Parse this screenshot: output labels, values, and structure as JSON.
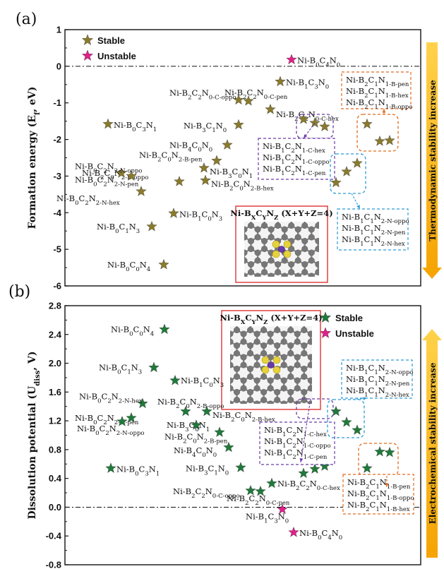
{
  "chart_data": [
    {
      "panel": "(a)",
      "type": "scatter",
      "ylabel_main": "Formation energy (E",
      "ylabel_sub": "f",
      "ylabel_tail": ", eV)",
      "ylim": [
        -6,
        1
      ],
      "yticks": [
        "1",
        "0",
        "-1",
        "-2",
        "-3",
        "-4",
        "-5",
        "-6"
      ],
      "side_label": "Thermodynamic stability increase",
      "arrow_direction": "down",
      "legend": [
        {
          "name": "Stable",
          "color": "#8a7a2c"
        },
        {
          "name": "Unstable",
          "color": "#e0208a"
        }
      ],
      "inset_title": "Ni-B",
      "inset_title_parts": [
        "Ni-B",
        "X",
        "C",
        "Y",
        "N",
        "Z",
        " (X+Y+Z=4)"
      ],
      "points": [
        {
          "label": [
            "Ni-B",
            "0",
            "C",
            "4",
            "N",
            "0"
          ],
          "y": 0.18,
          "status": "unstable"
        },
        {
          "label": [
            "Ni-B",
            "1",
            "C",
            "3",
            "N",
            "0"
          ],
          "y": -0.42,
          "status": "stable"
        },
        {
          "label": [
            "Ni-B",
            "2",
            "C",
            "2",
            "N",
            "0-C-pen"
          ],
          "y": -0.95,
          "status": "stable"
        },
        {
          "label": [
            "Ni-B",
            "2",
            "C",
            "2",
            "N",
            "0-C-oppo"
          ],
          "y": -0.92,
          "status": "stable"
        },
        {
          "label": [
            "Ni-B",
            "2",
            "C",
            "2",
            "N",
            "0-C-hex"
          ],
          "y": -1.18,
          "status": "stable"
        },
        {
          "label": [
            "Ni-B",
            "0",
            "C",
            "3",
            "N",
            "1"
          ],
          "y": -1.58,
          "status": "stable"
        },
        {
          "label": [
            "Ni-B",
            "3",
            "C",
            "1",
            "N",
            "0"
          ],
          "y": -1.6,
          "status": "stable"
        },
        {
          "label": [
            "Ni-B",
            "4",
            "C",
            "0",
            "N",
            "0"
          ],
          "y": -2.15,
          "status": "stable"
        },
        {
          "label": [
            "Ni-B",
            "2",
            "C",
            "0",
            "N",
            "2-B-pen"
          ],
          "y": -2.58,
          "status": "stable"
        },
        {
          "label": [
            "Ni-B",
            "3",
            "C",
            "0",
            "N",
            "1"
          ],
          "y": -2.78,
          "status": "stable"
        },
        {
          "label": [
            "Ni-B",
            "2",
            "C",
            "0",
            "N",
            "2-B-oppo"
          ],
          "y": -3.15,
          "status": "stable"
        },
        {
          "label": [
            "Ni-B",
            "2",
            "C",
            "0",
            "N",
            "2-B-hex"
          ],
          "y": -3.12,
          "status": "stable"
        },
        {
          "label": [
            "Ni-B",
            "0",
            "C",
            "2",
            "N",
            "2-N-oppo"
          ],
          "y": -2.92,
          "status": "stable"
        },
        {
          "label": [
            "Ni-B",
            "0",
            "C",
            "2",
            "N",
            "2-N-pen"
          ],
          "y": -3.0,
          "status": "stable"
        },
        {
          "label": [
            "Ni-B",
            "0",
            "C",
            "2",
            "N",
            "2-N-hex"
          ],
          "y": -3.42,
          "status": "stable"
        },
        {
          "label": [
            "Ni-B",
            "1",
            "C",
            "0",
            "N",
            "3"
          ],
          "y": -4.02,
          "status": "stable"
        },
        {
          "label": [
            "Ni-B",
            "0",
            "C",
            "1",
            "N",
            "3"
          ],
          "y": -4.38,
          "status": "stable"
        },
        {
          "label": [
            "Ni-B",
            "0",
            "C",
            "0",
            "N",
            "4"
          ],
          "y": -5.42,
          "status": "stable"
        }
      ],
      "groups": [
        {
          "color": "#6a3aa8",
          "lines": [
            [
              "Ni-B",
              "1",
              "C",
              "2",
              "N",
              "1-C-hex"
            ],
            [
              "Ni-B",
              "1",
              "C",
              "2",
              "N",
              "1-C-oppo"
            ],
            [
              "Ni-B",
              "1",
              "C",
              "2",
              "N",
              "1-C-pen"
            ]
          ],
          "y": [
            -1.45,
            -1.55,
            -1.65
          ]
        },
        {
          "color": "#e06a1e",
          "lines": [
            [
              "Ni-B",
              "2",
              "C",
              "1",
              "N",
              "1-B-pen"
            ],
            [
              "Ni-B",
              "2",
              "C",
              "1",
              "N",
              "1-B-hex"
            ],
            [
              "Ni-B",
              "2",
              "C",
              "1",
              "N",
              "1-B-oppo"
            ]
          ],
          "y": [
            -1.58,
            -2.05,
            -2.03
          ]
        },
        {
          "color": "#2a9bd6",
          "lines": [
            [
              "Ni-B",
              "1",
              "C",
              "1",
              "N",
              "2-N-oppo"
            ],
            [
              "Ni-B",
              "1",
              "C",
              "1",
              "N",
              "2-N-pen"
            ],
            [
              "Ni-B",
              "1",
              "C",
              "1",
              "N",
              "2-N-hex"
            ]
          ],
          "y": [
            -3.18,
            -2.88,
            -2.65
          ]
        }
      ]
    },
    {
      "panel": "(b)",
      "type": "scatter",
      "ylabel_main": "Dissolution potential (U",
      "ylabel_sub": "diss",
      "ylabel_tail": ", V)",
      "ylim": [
        -0.8,
        2.8
      ],
      "yticks": [
        "2.8",
        "2.4",
        "2.0",
        "1.6",
        "1.2",
        "0.8",
        "0.4",
        "0.0",
        "-0.4",
        "-0.8"
      ],
      "side_label": "Electrochemical stability increase",
      "arrow_direction": "up",
      "legend": [
        {
          "name": "Stable",
          "color": "#1f7a3a"
        },
        {
          "name": "Unstable",
          "color": "#e0208a"
        }
      ],
      "inset_title_parts": [
        "Ni-B",
        "X",
        "C",
        "Y",
        "N",
        "Z",
        " (X+Y+Z=4)"
      ],
      "points": [
        {
          "label": [
            "Ni-B",
            "0",
            "C",
            "0",
            "N",
            "4"
          ],
          "y": 2.47,
          "status": "stable"
        },
        {
          "label": [
            "Ni-B",
            "0",
            "C",
            "1",
            "N",
            "3"
          ],
          "y": 1.94,
          "status": "stable"
        },
        {
          "label": [
            "Ni-B",
            "1",
            "C",
            "0",
            "N",
            "3"
          ],
          "y": 1.76,
          "status": "stable"
        },
        {
          "label": [
            "Ni-B",
            "0",
            "C",
            "2",
            "N",
            "2-N-hex"
          ],
          "y": 1.44,
          "status": "stable"
        },
        {
          "label": [
            "Ni-B",
            "0",
            "C",
            "2",
            "N",
            "2-N-pen"
          ],
          "y": 1.24,
          "status": "stable"
        },
        {
          "label": [
            "Ni-B",
            "0",
            "C",
            "2",
            "N",
            "2-N-oppo"
          ],
          "y": 1.19,
          "status": "stable"
        },
        {
          "label": [
            "Ni-B",
            "2",
            "C",
            "0",
            "N",
            "2-B-oppo"
          ],
          "y": 1.33,
          "status": "stable"
        },
        {
          "label": [
            "Ni-B",
            "2",
            "C",
            "0",
            "N",
            "2-B-hex"
          ],
          "y": 1.33,
          "status": "stable"
        },
        {
          "label": [
            "Ni-B",
            "3",
            "C",
            "0",
            "N",
            "1"
          ],
          "y": 1.14,
          "status": "stable"
        },
        {
          "label": [
            "Ni-B",
            "2",
            "C",
            "0",
            "N",
            "2-B-pen"
          ],
          "y": 1.04,
          "status": "stable"
        },
        {
          "label": [
            "Ni-B",
            "4",
            "C",
            "0",
            "N",
            "0"
          ],
          "y": 0.83,
          "status": "stable"
        },
        {
          "label": [
            "Ni-B",
            "0",
            "C",
            "3",
            "N",
            "1"
          ],
          "y": 0.54,
          "status": "stable"
        },
        {
          "label": [
            "Ni-B",
            "3",
            "C",
            "1",
            "N",
            "0"
          ],
          "y": 0.55,
          "status": "stable"
        },
        {
          "label": [
            "Ni-B",
            "2",
            "C",
            "2",
            "N",
            "0-C-oppo"
          ],
          "y": 0.23,
          "status": "stable"
        },
        {
          "label": [
            "Ni-B",
            "2",
            "C",
            "2",
            "N",
            "0-C-pen"
          ],
          "y": 0.22,
          "status": "stable"
        },
        {
          "label": [
            "Ni-B",
            "2",
            "C",
            "2",
            "N",
            "0-C-hex"
          ],
          "y": 0.33,
          "status": "stable"
        },
        {
          "label": [
            "Ni-B",
            "1",
            "C",
            "3",
            "N",
            "0"
          ],
          "y": -0.03,
          "status": "unstable"
        },
        {
          "label": [
            "Ni-B",
            "0",
            "C",
            "4",
            "N",
            "0"
          ],
          "y": -0.35,
          "status": "unstable"
        }
      ],
      "groups": [
        {
          "color": "#6a3aa8",
          "lines": [
            [
              "Ni-B",
              "1",
              "C",
              "2",
              "N",
              "1-C-hex"
            ],
            [
              "Ni-B",
              "1",
              "C",
              "2",
              "N",
              "1-C-oppo"
            ],
            [
              "Ni-B",
              "1",
              "C",
              "2",
              "N",
              "1-C-pen"
            ]
          ],
          "y": [
            0.47,
            0.53,
            0.57
          ]
        },
        {
          "color": "#e06a1e",
          "lines": [
            [
              "Ni-B",
              "2",
              "C",
              "1",
              "N",
              "1-B-pen"
            ],
            [
              "Ni-B",
              "2",
              "C",
              "1",
              "N",
              "1-B-oppo"
            ],
            [
              "Ni-B",
              "2",
              "C",
              "1",
              "N",
              "1-B-hex"
            ]
          ],
          "y": [
            0.54,
            0.77,
            0.76
          ]
        },
        {
          "color": "#2a9bd6",
          "lines": [
            [
              "Ni-B",
              "1",
              "C",
              "1",
              "N",
              "2-N-oppo"
            ],
            [
              "Ni-B",
              "1",
              "C",
              "1",
              "N",
              "2-N-pen"
            ],
            [
              "Ni-B",
              "1",
              "C",
              "1",
              "N",
              "2-N-hex"
            ]
          ],
          "y": [
            1.33,
            1.18,
            1.07
          ]
        }
      ]
    }
  ]
}
